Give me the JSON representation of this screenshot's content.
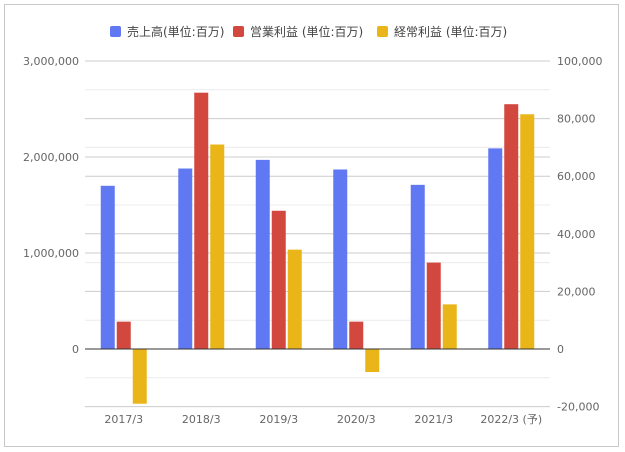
{
  "chart_data": {
    "type": "bar",
    "title": "",
    "xlabel": "",
    "ylabel": "",
    "categories": [
      "2017/3",
      "2018/3",
      "2019/3",
      "2020/3",
      "2021/3",
      "2022/3 (予)"
    ],
    "series": [
      {
        "name": "売上高(単位:百万)",
        "axis": "left",
        "color": "#6079f2",
        "values": [
          1700000,
          1880000,
          1970000,
          1870000,
          1710000,
          2090000
        ]
      },
      {
        "name": "営業利益 (単位:百万)",
        "axis": "right",
        "color": "#d2483f",
        "values": [
          9500,
          89000,
          48000,
          9500,
          30000,
          85000
        ]
      },
      {
        "name": "経常利益 (単位:百万)",
        "axis": "right",
        "color": "#eab519",
        "values": [
          -19000,
          71000,
          34500,
          -8000,
          15500,
          81500
        ]
      }
    ],
    "y_left": {
      "ylim": [
        -575000,
        3000000
      ],
      "ticks": [
        0,
        1000000,
        2000000,
        3000000
      ],
      "tick_labels": [
        "0",
        "1,000,000",
        "2,000,000",
        "3,000,000"
      ]
    },
    "y_right": {
      "ylim": [
        -20000,
        100000
      ],
      "ticks": [
        -20000,
        0,
        20000,
        40000,
        60000,
        80000,
        100000
      ],
      "tick_labels": [
        "-20,000",
        "0",
        "20,000",
        "40,000",
        "60,000",
        "80,000",
        "100,000"
      ]
    },
    "grid": true,
    "legend_position": "top"
  }
}
